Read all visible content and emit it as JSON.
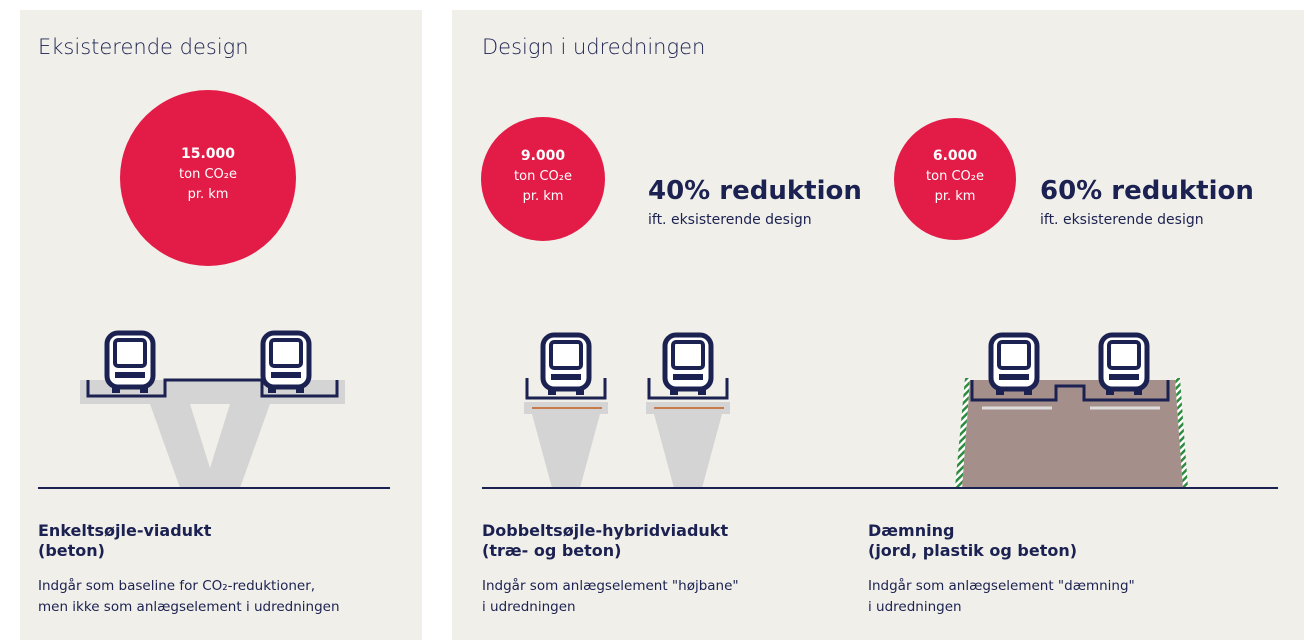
{
  "panels": [
    {
      "title": "Eksisterende design",
      "designs": [
        {
          "value": "15.000",
          "unit": "ton CO₂e",
          "per": "pr. km",
          "name": [
            "Enkeltsøjle-viadukt",
            "(beton)"
          ],
          "description": [
            "Indgår som baseline for CO₂-reduktioner,",
            "men ikke som anlægselement i udredningen"
          ]
        }
      ]
    },
    {
      "title": "Design i udredningen",
      "designs": [
        {
          "value": "9.000",
          "unit": "ton CO₂e",
          "per": "pr. km",
          "reduction": "40% reduktion",
          "reduction_note": "ift. eksisterende design",
          "name": [
            "Dobbeltsøjle-hybridviadukt",
            "(træ- og beton)"
          ],
          "description": [
            "Indgår som anlægselement \"højbane\"",
            "i udredningen"
          ]
        },
        {
          "value": "6.000",
          "unit": "ton CO₂e",
          "per": "pr. km",
          "reduction": "60% reduktion",
          "reduction_note": "ift. eksisterende design",
          "name": [
            "Dæmning",
            "(jord, plastik og beton)"
          ],
          "description": [
            "Indgår som anlægselement \"dæmning\"",
            "i udredningen"
          ]
        }
      ]
    }
  ]
}
